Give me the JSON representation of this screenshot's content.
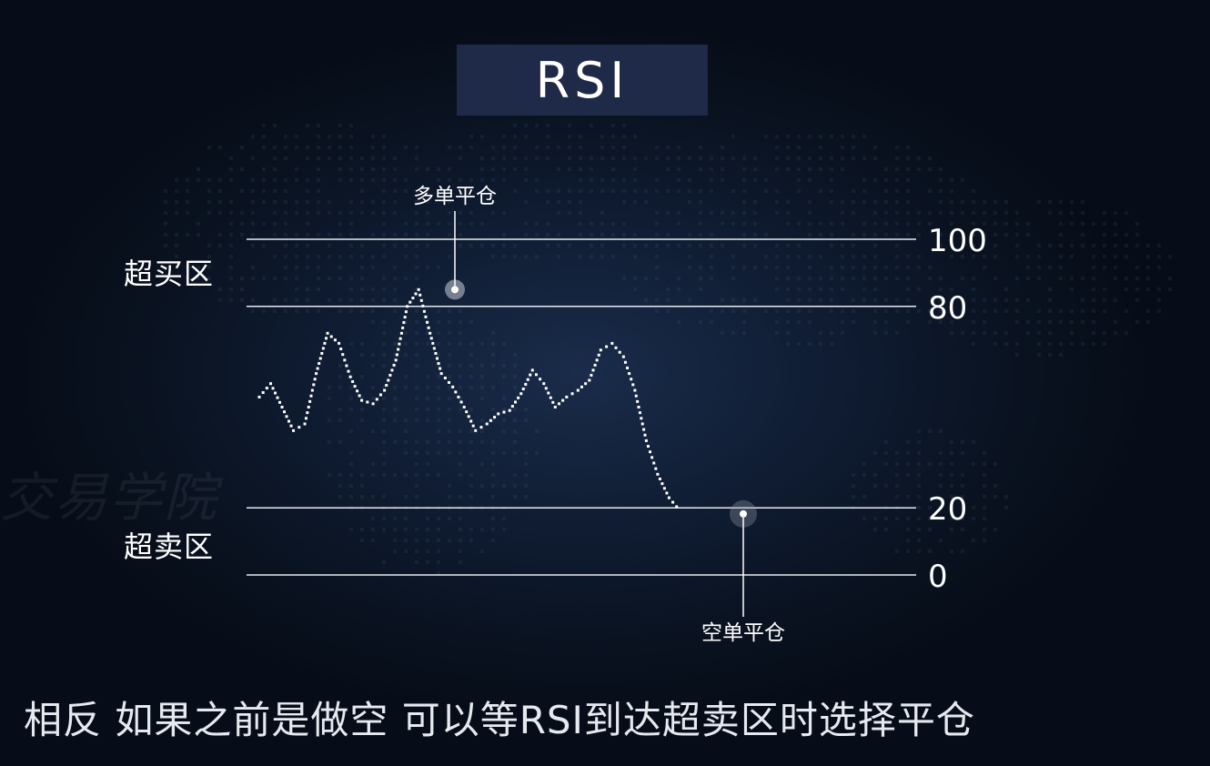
{
  "title": "RSI",
  "watermark": "交易学院",
  "zones": {
    "overbought": "超买区",
    "oversold": "超卖区"
  },
  "subtitle": "相反 如果之前是做空  可以等RSI到达超卖区时选择平仓",
  "chart_data": {
    "type": "line",
    "title": "RSI",
    "ylim": [
      0,
      100
    ],
    "levels": [
      100,
      80,
      20,
      0
    ],
    "tick_labels": [
      "100",
      "80",
      "20",
      "0"
    ],
    "grid": false,
    "x": [
      0,
      2,
      4,
      6,
      8,
      10,
      12,
      14,
      16,
      18,
      20,
      22,
      24,
      26,
      28,
      30,
      32,
      34,
      36,
      38,
      40,
      42,
      44,
      46,
      48,
      50,
      52,
      54,
      56,
      58,
      60,
      62,
      64,
      66,
      68,
      70,
      72,
      74,
      76,
      78,
      80,
      82,
      84,
      86,
      88,
      90
    ],
    "series": [
      {
        "values": [
          53,
          57,
          50,
          43,
          45,
          60,
          72,
          69,
          59,
          52,
          51,
          55,
          64,
          80,
          85,
          72,
          60,
          56,
          50,
          43,
          45,
          48,
          49,
          54,
          61,
          57,
          50,
          53,
          55,
          58,
          67,
          69,
          65,
          55,
          40,
          30,
          23,
          19,
          21,
          20,
          20,
          20,
          20,
          20,
          20,
          20
        ]
      }
    ],
    "annotations": [
      {
        "label": "多单平仓",
        "x": 28,
        "y": 85
      },
      {
        "label": "空单平仓",
        "x": 37,
        "y": 19
      }
    ]
  }
}
